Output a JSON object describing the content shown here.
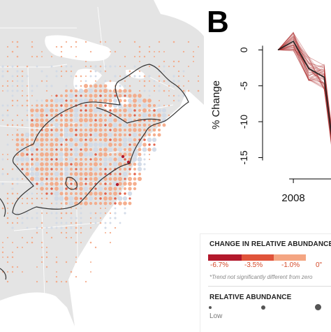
{
  "panel_label": "B",
  "colors": {
    "land": "#e4e4e4",
    "water": "#ffffff",
    "decline_strong": "#b2182b",
    "decline_mid": "#e0533a",
    "decline_weak": "#f4a582",
    "not_significant": "#cfd8e6",
    "range_outline": "#333333",
    "trend_line": "#222222",
    "ensemble": "#b03030"
  },
  "chart_data": {
    "type": "line",
    "title": "",
    "xlabel": "",
    "ylabel": "% Change",
    "x_ticks": [
      2008
    ],
    "y_ticks": [
      0,
      -5,
      -10,
      -15
    ],
    "ylim": [
      -17,
      1.5
    ],
    "xlim": [
      2006,
      2012
    ],
    "series": [
      {
        "x": [
          2007,
          2008,
          2009,
          2010,
          2010.6
        ],
        "y": [
          0,
          1.2,
          -2.6,
          -3.8,
          -14
        ]
      }
    ]
  },
  "legend": {
    "change_title": "CHANGE IN RELATIVE ABUNDANCE",
    "change_ticks": [
      "-6.7%",
      "-3.5%",
      "-1.0%",
      "0\""
    ],
    "note": "*Trend not significantly different from zero",
    "abundance_title": "RELATIVE ABUNDANCE",
    "abundance_low": "Low"
  }
}
